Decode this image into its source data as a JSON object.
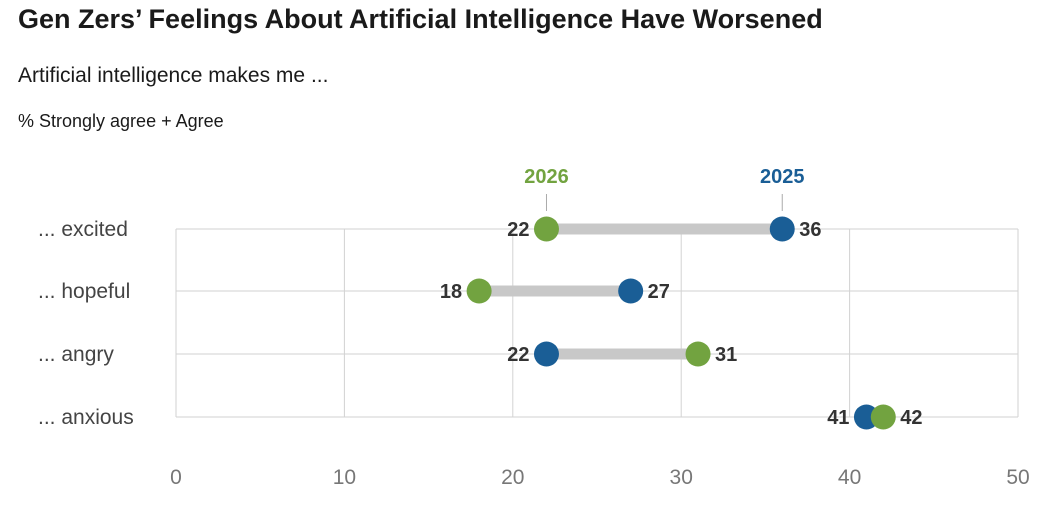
{
  "title": "Gen Zers’ Feelings About Artificial Intelligence Have Worsened",
  "subtitle": "Artificial intelligence makes me ...",
  "note": "% Strongly agree + Agree",
  "colors": {
    "y2026": "#72a340",
    "y2025": "#1a5e96",
    "connector": "#c8c8c8",
    "grid": "#d2d2d2"
  },
  "chart_data": {
    "type": "dumbbell",
    "categories": [
      "... excited",
      "... hopeful",
      "... angry",
      "... anxious"
    ],
    "series": [
      {
        "name": "2026",
        "values": [
          22,
          18,
          31,
          42
        ]
      },
      {
        "name": "2025",
        "values": [
          36,
          27,
          22,
          41
        ]
      }
    ],
    "xlim": [
      0,
      50
    ],
    "xticks": [
      "0",
      "10",
      "20",
      "30",
      "40",
      "50"
    ],
    "grid": true,
    "legend": "top, labels above first row"
  }
}
